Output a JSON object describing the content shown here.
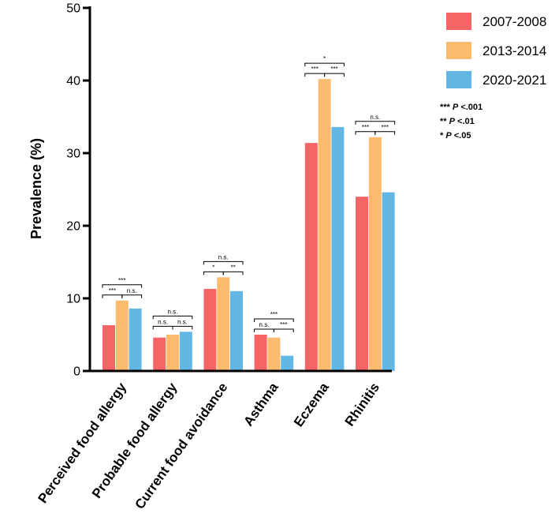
{
  "chart_data": {
    "type": "bar",
    "title": "",
    "xlabel": "",
    "ylabel": "Prevalence (%)",
    "ylim": [
      0,
      50
    ],
    "yticks": [
      0,
      10,
      20,
      30,
      40,
      50
    ],
    "categories": [
      "Perceived food allergy",
      "Probable food allergy",
      "Current food avoidance",
      "Asthma",
      "Eczema",
      "Rhinitis"
    ],
    "series": [
      {
        "name": "2007-2008",
        "color": "#F66566",
        "values": [
          6.3,
          4.6,
          11.3,
          5.0,
          31.4,
          24.0
        ]
      },
      {
        "name": "2013-2014",
        "color": "#FDBB6E",
        "values": [
          9.7,
          5.0,
          12.9,
          4.6,
          40.2,
          32.2
        ]
      },
      {
        "name": "2020-2021",
        "color": "#63B7E5",
        "values": [
          8.6,
          5.4,
          11.0,
          2.1,
          33.6,
          24.6
        ]
      }
    ],
    "significance": [
      {
        "outer": "***",
        "left": "***",
        "right": "n.s."
      },
      {
        "outer": "n.s.",
        "left": "n.s.",
        "right": "n.s."
      },
      {
        "outer": "n.s.",
        "left": "*",
        "right": "**"
      },
      {
        "outer": "***",
        "left": "n.s.",
        "right": "***"
      },
      {
        "outer": "*",
        "left": "***",
        "right": "***"
      },
      {
        "outer": "n.s.",
        "left": "***",
        "right": "***"
      }
    ],
    "significance_key": [
      {
        "stars": "***",
        "p": "P",
        "text": "<.001"
      },
      {
        "stars": "**",
        "p": "P",
        "text": "<.01"
      },
      {
        "stars": "*",
        "p": "P",
        "text": "<.05"
      }
    ],
    "legend_position": "top-right"
  }
}
